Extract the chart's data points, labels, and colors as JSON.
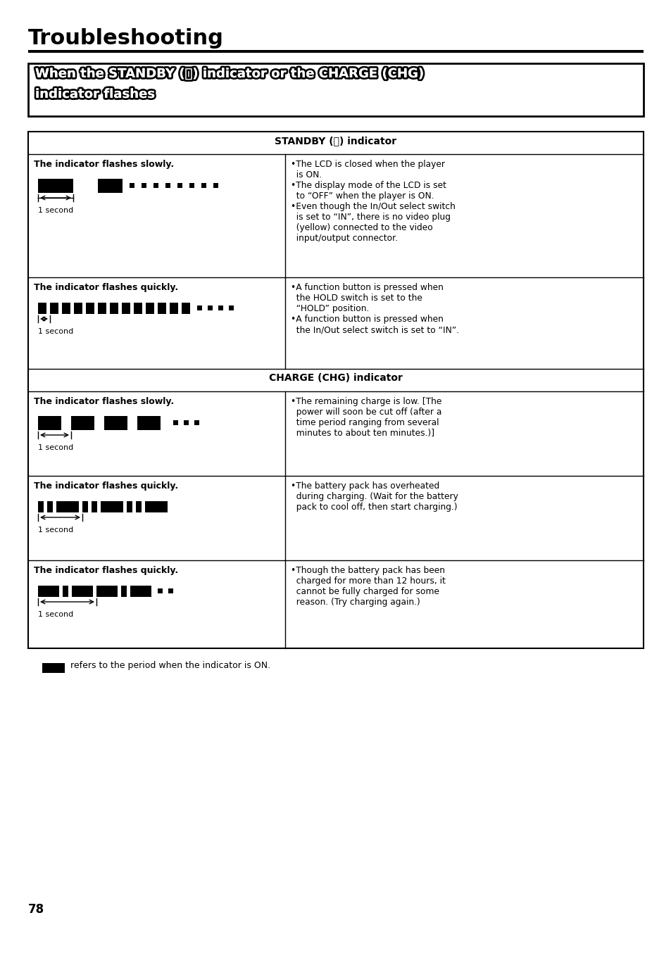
{
  "title": "Troubleshooting",
  "bg_color": "#ffffff",
  "header_standby": "STANDBY (⏻) indicator",
  "header_charge": "CHARGE (CHG) indicator",
  "subtitle_line1": "When the STANDBY (Ø) indicator or the CHARGE (CHG)",
  "subtitle_line2": "indicator flashes",
  "rows": [
    {
      "left_title": "The indicator flashes slowly.",
      "pattern_type": "slow_standby",
      "right_text": "•The LCD is closed when the player\n  is ON.\n•The display mode of the LCD is set\n  to “OFF” when the player is ON.\n•Even though the In/Out select switch\n  is set to “IN”, there is no video plug\n  (yellow) connected to the video\n  input/output connector."
    },
    {
      "left_title": "The indicator flashes quickly.",
      "pattern_type": "fast_standby",
      "right_text": "•A function button is pressed when\n  the HOLD switch is set to the\n  “HOLD” position.\n•A function button is pressed when\n  the In/Out select switch is set to “IN”."
    },
    {
      "left_title": "The indicator flashes slowly.",
      "pattern_type": "slow_charge",
      "right_text": "•The remaining charge is low. [The\n  power will soon be cut off (after a\n  time period ranging from several\n  minutes to about ten minutes.)]"
    },
    {
      "left_title": "The indicator flashes quickly.",
      "pattern_type": "fast_charge1",
      "right_text": "•The battery pack has overheated\n  during charging. (Wait for the battery\n  pack to cool off, then start charging.)"
    },
    {
      "left_title": "The indicator flashes quickly.",
      "pattern_type": "fast_charge2",
      "right_text": "•Though the battery pack has been\n  charged for more than 12 hours, it\n  cannot be fully charged for some\n  reason. (Try charging again.)"
    }
  ],
  "footer_text": "refers to the period when the indicator is ON.",
  "page_number": "78"
}
